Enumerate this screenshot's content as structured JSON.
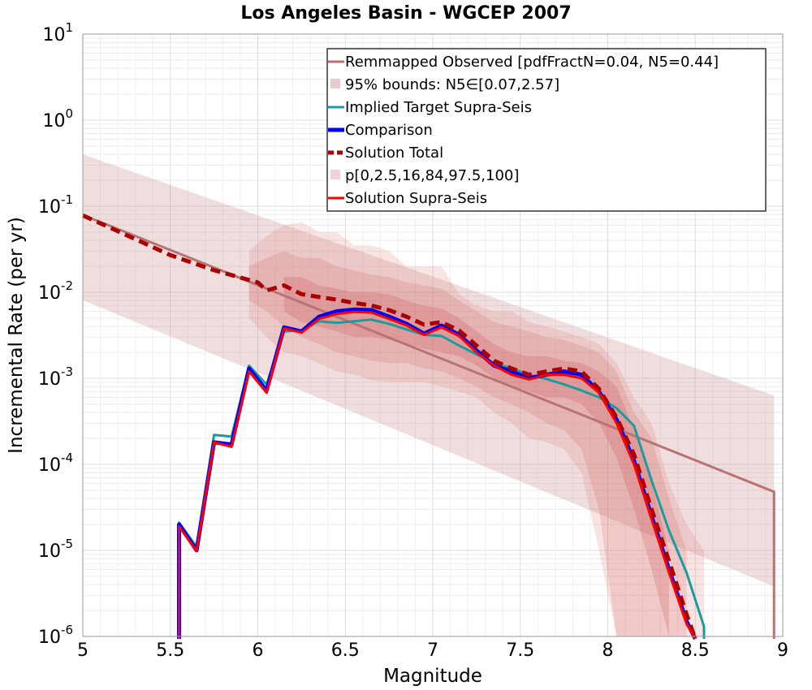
{
  "chart_data": {
    "type": "line",
    "title": "Los Angeles Basin - WGCEP 2007",
    "xlabel": "Magnitude",
    "ylabel": "Incremental Rate (per yr)",
    "xlim": [
      5,
      9
    ],
    "ylim": [
      1e-06,
      10
    ],
    "yscale": "log",
    "grid": true,
    "legend_position": "top-right",
    "x_ticks": [
      {
        "value": 5,
        "label": "5"
      },
      {
        "value": 5.5,
        "label": "5.5"
      },
      {
        "value": 6,
        "label": "6"
      },
      {
        "value": 6.5,
        "label": "6.5"
      },
      {
        "value": 7,
        "label": "7"
      },
      {
        "value": 7.5,
        "label": "7.5"
      },
      {
        "value": 8,
        "label": "8"
      },
      {
        "value": 8.5,
        "label": "8.5"
      },
      {
        "value": 9,
        "label": "9"
      }
    ],
    "y_ticks": [
      {
        "value": 10,
        "base": "10",
        "exp": "1"
      },
      {
        "value": 1,
        "base": "10",
        "exp": "0"
      },
      {
        "value": 0.1,
        "base": "10",
        "exp": "-1"
      },
      {
        "value": 0.01,
        "base": "10",
        "exp": "-2"
      },
      {
        "value": 0.001,
        "base": "10",
        "exp": "-3"
      },
      {
        "value": 0.0001,
        "base": "10",
        "exp": "-4"
      },
      {
        "value": 1e-05,
        "base": "10",
        "exp": "-5"
      },
      {
        "value": 1e-06,
        "base": "10",
        "exp": "-6"
      }
    ],
    "legend": [
      {
        "label": "Remmapped Observed [pdfFractN=0.04, N5=0.44]",
        "style": "line",
        "color": "#b87474"
      },
      {
        "label": "95% bounds: N5∈[0.07,2.57]",
        "style": "band",
        "color": "#e8cccc"
      },
      {
        "label": "Implied Target Supra-Seis",
        "style": "line",
        "color": "#1a9c9c"
      },
      {
        "label": "Comparison",
        "style": "thick",
        "color": "#0000ff"
      },
      {
        "label": "Solution Total",
        "style": "dashed",
        "color": "#aa0000"
      },
      {
        "label": "p[0,2.5,16,84,97.5,100]",
        "style": "band",
        "color": "#f2d2d2"
      },
      {
        "label": "Solution Supra-Seis",
        "style": "line",
        "color": "#ff0000"
      }
    ],
    "bands": [
      {
        "name": "95% bounds",
        "color": "#c88888",
        "opacity": 0.28,
        "x": [
          5.0,
          8.95
        ],
        "lower": [
          0.0081,
          3.8e-06
        ],
        "upper": [
          0.4,
          0.00063
        ]
      },
      {
        "name": "p0-100",
        "color": "#e06868",
        "opacity": 0.18,
        "x": [
          5.95,
          6.05,
          6.15,
          6.25,
          6.35,
          6.45,
          6.55,
          6.65,
          6.75,
          6.85,
          6.95,
          7.05,
          7.15,
          7.25,
          7.35,
          7.45,
          7.55,
          7.65,
          7.75,
          7.85,
          7.95,
          8.05,
          8.15,
          8.25,
          8.35,
          8.45,
          8.55
        ],
        "lower": [
          0.005,
          0.003,
          0.002,
          0.0018,
          0.0015,
          0.0012,
          0.0011,
          0.00095,
          0.0009,
          0.0009,
          0.0009,
          0.0008,
          0.0007,
          0.0006,
          0.0004,
          0.0003,
          0.0002,
          0.00018,
          0.00015,
          8e-05,
          1e-05,
          1e-06,
          1e-06,
          1e-06,
          1e-06,
          1e-06,
          1e-06
        ],
        "upper": [
          0.03,
          0.045,
          0.06,
          0.065,
          0.05,
          0.05,
          0.035,
          0.035,
          0.03,
          0.02,
          0.02,
          0.02,
          0.0095,
          0.007,
          0.006,
          0.006,
          0.0045,
          0.004,
          0.0035,
          0.003,
          0.0025,
          0.0015,
          0.0006,
          0.0003,
          6e-05,
          2e-05,
          1e-05
        ]
      },
      {
        "name": "p2.5-97.5",
        "color": "#d46060",
        "opacity": 0.2,
        "x": [
          5.95,
          6.05,
          6.15,
          6.25,
          6.35,
          6.45,
          6.55,
          6.65,
          6.75,
          6.85,
          6.95,
          7.05,
          7.15,
          7.25,
          7.35,
          7.45,
          7.55,
          7.65,
          7.75,
          7.85,
          7.95,
          8.05,
          8.15,
          8.25,
          8.35,
          8.45
        ],
        "lower": [
          0.008,
          0.006,
          0.004,
          0.003,
          0.0025,
          0.002,
          0.0018,
          0.0016,
          0.0015,
          0.0015,
          0.0013,
          0.0012,
          0.001,
          0.0008,
          0.0006,
          0.0005,
          0.0004,
          0.0003,
          0.00025,
          0.00015,
          3e-05,
          1e-06,
          1e-06,
          1e-06,
          1e-06,
          1e-06
        ],
        "upper": [
          0.02,
          0.025,
          0.03,
          0.025,
          0.025,
          0.02,
          0.018,
          0.016,
          0.015,
          0.013,
          0.012,
          0.011,
          0.008,
          0.006,
          0.0045,
          0.004,
          0.0035,
          0.003,
          0.0028,
          0.0024,
          0.002,
          0.0012,
          0.0004,
          0.0002,
          4e-05,
          1e-05
        ]
      },
      {
        "name": "p16-84",
        "color": "#c85050",
        "opacity": 0.24,
        "x": [
          6.15,
          6.25,
          6.35,
          6.45,
          6.55,
          6.65,
          6.75,
          6.85,
          6.95,
          7.05,
          7.15,
          7.25,
          7.35,
          7.45,
          7.55,
          7.65,
          7.75,
          7.85,
          7.95,
          8.05,
          8.15,
          8.25,
          8.35
        ],
        "lower": [
          0.006,
          0.0045,
          0.004,
          0.0035,
          0.003,
          0.003,
          0.0028,
          0.0025,
          0.0022,
          0.002,
          0.0018,
          0.0014,
          0.001,
          0.0008,
          0.0007,
          0.0006,
          0.0006,
          0.0005,
          0.0003,
          0.00012,
          3e-05,
          6e-06,
          1e-06
        ],
        "upper": [
          0.015,
          0.015,
          0.012,
          0.011,
          0.01,
          0.01,
          0.0095,
          0.008,
          0.007,
          0.0065,
          0.005,
          0.0035,
          0.0025,
          0.002,
          0.0018,
          0.0018,
          0.0016,
          0.0015,
          0.0012,
          0.0008,
          0.00025,
          6e-05,
          1e-05
        ]
      }
    ],
    "series": [
      {
        "name": "Remmapped Observed",
        "color": "#b87474",
        "width": 3,
        "dash": "",
        "x": [
          5.0,
          8.95,
          8.95
        ],
        "y": [
          0.079,
          4.8e-05,
          1e-07
        ]
      },
      {
        "name": "Implied Target Supra-Seis",
        "color": "#1a9c9c",
        "width": 3,
        "dash": "",
        "x": [
          5.55,
          5.55,
          5.65,
          5.75,
          5.85,
          5.95,
          6.05,
          6.15,
          6.25,
          6.35,
          6.45,
          6.55,
          6.65,
          6.75,
          6.85,
          6.95,
          7.05,
          7.15,
          7.25,
          7.35,
          7.45,
          7.55,
          7.65,
          7.75,
          7.85,
          7.95,
          8.05,
          8.15,
          8.25,
          8.35,
          8.45,
          8.55,
          8.55
        ],
        "y": [
          1e-07,
          2.1e-05,
          1.1e-05,
          0.00022,
          0.00021,
          0.0014,
          0.00085,
          0.0035,
          0.0036,
          0.0046,
          0.0044,
          0.0046,
          0.0048,
          0.0043,
          0.0037,
          0.0032,
          0.0031,
          0.0024,
          0.0019,
          0.0015,
          0.0013,
          0.0011,
          0.00098,
          0.00085,
          0.00072,
          0.0006,
          0.00045,
          0.00028,
          6.5e-05,
          1.7e-05,
          5.5e-06,
          1.3e-06,
          1e-07
        ]
      },
      {
        "name": "Comparison",
        "color": "#0000ff",
        "width": 5,
        "dash": "",
        "x": [
          5.55,
          5.55,
          5.65,
          5.75,
          5.85,
          5.95,
          6.05,
          6.15,
          6.25,
          6.35,
          6.45,
          6.55,
          6.65,
          6.75,
          6.85,
          6.95,
          7.05,
          7.15,
          7.25,
          7.35,
          7.45,
          7.55,
          7.65,
          7.75,
          7.85,
          7.95,
          8.05,
          8.15,
          8.25,
          8.35,
          8.45,
          8.5
        ],
        "y": [
          1e-07,
          2e-05,
          1e-05,
          0.00018,
          0.00017,
          0.0013,
          0.00072,
          0.0039,
          0.0035,
          0.0052,
          0.006,
          0.0063,
          0.0062,
          0.0052,
          0.0043,
          0.0033,
          0.0041,
          0.0032,
          0.0021,
          0.0014,
          0.0012,
          0.001,
          0.0011,
          0.0012,
          0.0011,
          0.0007,
          0.00033,
          0.00011,
          2.5e-05,
          6e-06,
          1.5e-06,
          1e-07
        ]
      },
      {
        "name": "Solution Total",
        "color": "#aa0000",
        "width": 5,
        "dash": "12 7",
        "x": [
          5.0,
          5.25,
          5.5,
          5.75,
          6.0,
          6.05,
          6.15,
          6.25,
          6.35,
          6.45,
          6.55,
          6.65,
          6.75,
          6.85,
          6.95,
          7.05,
          7.15,
          7.25,
          7.35,
          7.45,
          7.55,
          7.65,
          7.75,
          7.85,
          7.95,
          8.05,
          8.15,
          8.25,
          8.35,
          8.45,
          8.5
        ],
        "y": [
          0.078,
          0.046,
          0.027,
          0.018,
          0.013,
          0.0105,
          0.012,
          0.0095,
          0.0088,
          0.0082,
          0.0075,
          0.007,
          0.0062,
          0.0052,
          0.0042,
          0.0045,
          0.0036,
          0.0024,
          0.0016,
          0.0013,
          0.0011,
          0.0012,
          0.0013,
          0.0012,
          0.00075,
          0.00035,
          0.00013,
          3e-05,
          7.5e-06,
          1.8e-06,
          1e-07
        ]
      },
      {
        "name": "Solution Supra-Seis",
        "color": "#ff0000",
        "width": 3,
        "dash": "",
        "x": [
          5.55,
          5.55,
          5.65,
          5.75,
          5.85,
          5.95,
          6.05,
          6.15,
          6.25,
          6.35,
          6.45,
          6.55,
          6.65,
          6.75,
          6.85,
          6.95,
          7.05,
          7.15,
          7.25,
          7.35,
          7.45,
          7.55,
          7.65,
          7.75,
          7.85,
          7.95,
          8.05,
          8.15,
          8.25,
          8.35,
          8.45,
          8.5
        ],
        "y": [
          1e-07,
          1.9e-05,
          9.8e-06,
          0.00018,
          0.00016,
          0.0012,
          0.00068,
          0.0038,
          0.0034,
          0.0049,
          0.0056,
          0.0059,
          0.0058,
          0.0049,
          0.0041,
          0.0032,
          0.0039,
          0.0031,
          0.002,
          0.0014,
          0.0011,
          0.00097,
          0.0011,
          0.0011,
          0.001,
          0.00068,
          0.0003,
          0.0001,
          2.3e-05,
          5.5e-06,
          1.4e-06,
          1e-07
        ]
      }
    ]
  }
}
